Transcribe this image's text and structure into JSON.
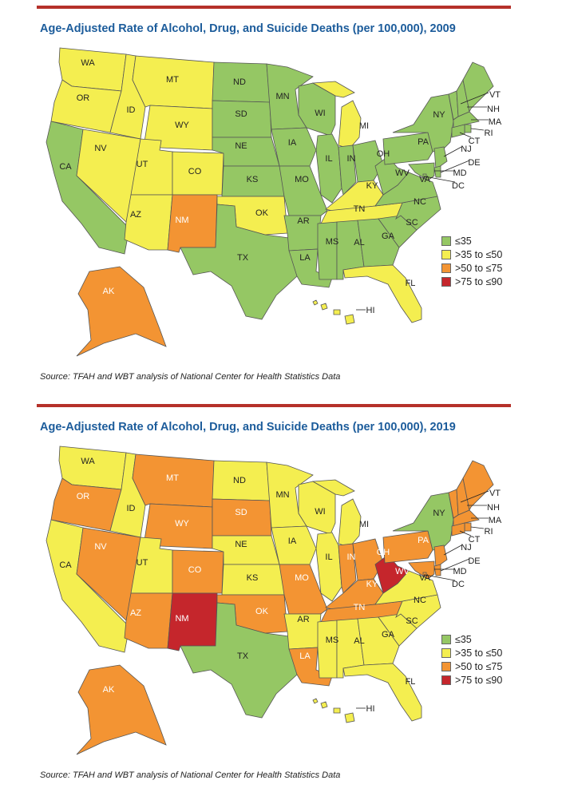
{
  "colors": {
    "c1": "#95c764",
    "c2": "#f4ee50",
    "c3": "#f39433",
    "c4": "#c5262c",
    "rule": "#b5312a",
    "title": "#1c5c9b"
  },
  "legend": [
    {
      "key": "c1",
      "label": "≤35"
    },
    {
      "key": "c2",
      "label": ">35 to ≤50"
    },
    {
      "key": "c3",
      "label": ">50 to ≤75"
    },
    {
      "key": "c4",
      "label": ">75 to ≤90"
    }
  ],
  "maps": [
    {
      "title": "Age-Adjusted Rate of Alcohol, Drug, and Suicide Deaths (per 100,000), 2009",
      "source": "Source: TFAH and WBT analysis of National Center for Health Statistics Data",
      "states": {
        "WA": "c2",
        "OR": "c2",
        "CA": "c1",
        "ID": "c2",
        "NV": "c2",
        "MT": "c2",
        "WY": "c2",
        "UT": "c2",
        "CO": "c2",
        "AZ": "c2",
        "NM": "c3",
        "ND": "c1",
        "SD": "c1",
        "NE": "c1",
        "KS": "c1",
        "OK": "c2",
        "TX": "c1",
        "MN": "c1",
        "IA": "c1",
        "MO": "c1",
        "AR": "c1",
        "LA": "c1",
        "WI": "c1",
        "IL": "c1",
        "MI": "c2",
        "IN": "c1",
        "OH": "c1",
        "KY": "c2",
        "TN": "c2",
        "MS": "c1",
        "AL": "c1",
        "GA": "c1",
        "FL": "c2",
        "SC": "c1",
        "NC": "c1",
        "VA": "c1",
        "WV": "c1",
        "PA": "c1",
        "NY": "c1",
        "ME": "c1",
        "VT": "c1",
        "NH": "c1",
        "MA": "c1",
        "RI": "c1",
        "CT": "c1",
        "NJ": "c1",
        "DE": "c1",
        "MD": "c1",
        "DC": "c1",
        "AK": "c3",
        "HI": "c2"
      }
    },
    {
      "title": "Age-Adjusted Rate of Alcohol, Drug, and Suicide Deaths (per 100,000), 2019",
      "source": "Source: TFAH and WBT analysis of National Center for Health Statistics Data",
      "states": {
        "WA": "c2",
        "OR": "c3",
        "CA": "c2",
        "ID": "c2",
        "NV": "c3",
        "MT": "c3",
        "WY": "c3",
        "UT": "c2",
        "CO": "c3",
        "AZ": "c3",
        "NM": "c4",
        "ND": "c2",
        "SD": "c3",
        "NE": "c2",
        "KS": "c2",
        "OK": "c3",
        "TX": "c1",
        "MN": "c2",
        "IA": "c2",
        "MO": "c3",
        "AR": "c2",
        "LA": "c3",
        "WI": "c2",
        "IL": "c2",
        "MI": "c2",
        "IN": "c3",
        "OH": "c3",
        "KY": "c3",
        "TN": "c3",
        "MS": "c2",
        "AL": "c2",
        "GA": "c2",
        "FL": "c2",
        "SC": "c2",
        "NC": "c2",
        "VA": "c2",
        "WV": "c4",
        "PA": "c3",
        "NY": "c1",
        "ME": "c3",
        "VT": "c3",
        "NH": "c3",
        "MA": "c3",
        "RI": "c3",
        "CT": "c3",
        "NJ": "c3",
        "DE": "c3",
        "MD": "c3",
        "DC": "c3",
        "AK": "c3",
        "HI": "c2"
      }
    }
  ]
}
